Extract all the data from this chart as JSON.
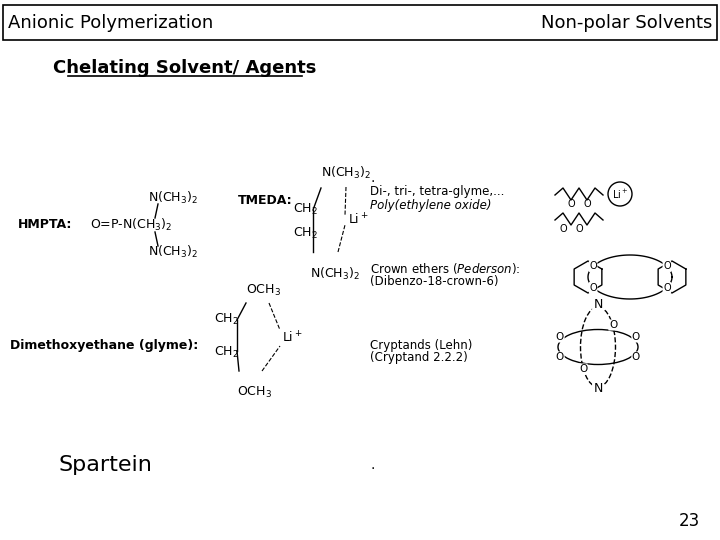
{
  "header_left": "Anionic Polymerization",
  "header_right": "Non-polar Solvents",
  "title": "Chelating Solvent/ Agents",
  "page_number": "23",
  "background_color": "#ffffff",
  "header_line_color": "#000000",
  "spartein_text": "Spartein"
}
